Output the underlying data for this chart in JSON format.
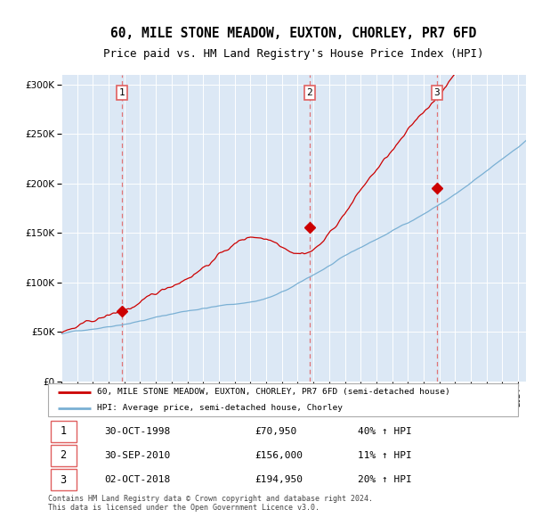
{
  "title": "60, MILE STONE MEADOW, EUXTON, CHORLEY, PR7 6FD",
  "subtitle": "Price paid vs. HM Land Registry's House Price Index (HPI)",
  "legend_label_red": "60, MILE STONE MEADOW, EUXTON, CHORLEY, PR7 6FD (semi-detached house)",
  "legend_label_blue": "HPI: Average price, semi-detached house, Chorley",
  "sale_labels": [
    "1",
    "2",
    "3"
  ],
  "sale_date_strs": [
    "30-OCT-1998",
    "30-SEP-2010",
    "02-OCT-2018"
  ],
  "sale_price_strs": [
    "£70,950",
    "£156,000",
    "£194,950"
  ],
  "sale_hpi_strs": [
    "40% ↑ HPI",
    "11% ↑ HPI",
    "20% ↑ HPI"
  ],
  "sale_year_nums": [
    1998.833,
    2010.75,
    2018.833
  ],
  "sale_prices": [
    70950,
    156000,
    194950
  ],
  "footer": "Contains HM Land Registry data © Crown copyright and database right 2024.\nThis data is licensed under the Open Government Licence v3.0.",
  "ylim": [
    0,
    310000
  ],
  "yticks": [
    0,
    50000,
    100000,
    150000,
    200000,
    250000,
    300000
  ],
  "xlim_start": 1995.0,
  "xlim_end": 2024.5,
  "background_color": "#ffffff",
  "plot_bg_color": "#dce8f5",
  "grid_color": "#ffffff",
  "red_color": "#cc0000",
  "blue_color": "#7ab0d4",
  "vline_color": "#e06060",
  "title_fontsize": 10.5,
  "subtitle_fontsize": 9.0
}
